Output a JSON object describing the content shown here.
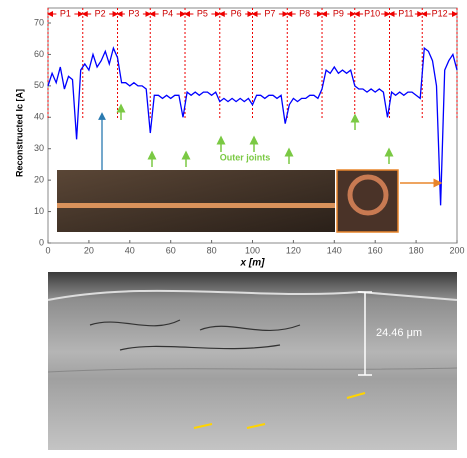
{
  "chart_data": {
    "type": "line",
    "y_label": "Reconstructed Ic [A]",
    "x_label": "x [m]",
    "annotation": "Outer joints",
    "segment_labels": [
      "P1",
      "P2",
      "P3",
      "P4",
      "P5",
      "P6",
      "P7",
      "P8",
      "P9",
      "P10",
      "P11",
      "P12"
    ],
    "segment_edges": [
      0,
      17,
      34,
      50,
      67,
      84,
      100,
      117,
      134,
      150,
      167,
      183,
      200
    ],
    "x": [
      0,
      2,
      4,
      6,
      8,
      10,
      12,
      14,
      16,
      18,
      20,
      22,
      24,
      26,
      28,
      30,
      32,
      34,
      36,
      38,
      40,
      42,
      44,
      46,
      48,
      50,
      52,
      54,
      56,
      58,
      60,
      62,
      64,
      66,
      68,
      70,
      72,
      74,
      76,
      78,
      80,
      82,
      84,
      86,
      88,
      90,
      92,
      94,
      96,
      98,
      100,
      102,
      104,
      106,
      108,
      110,
      112,
      114,
      116,
      118,
      120,
      122,
      124,
      126,
      128,
      130,
      132,
      134,
      136,
      138,
      140,
      142,
      144,
      146,
      148,
      150,
      152,
      154,
      156,
      158,
      160,
      162,
      164,
      166,
      168,
      170,
      172,
      174,
      176,
      178,
      180,
      182,
      184,
      186,
      188,
      190,
      192,
      194,
      196,
      198,
      200
    ],
    "series": [
      {
        "color": "#0000ff",
        "values": [
          50,
          54,
          51,
          56,
          49,
          53,
          52,
          33,
          55,
          57,
          55,
          60,
          56,
          58,
          61,
          57,
          62,
          59,
          51,
          51,
          50,
          51,
          50,
          50,
          49,
          35,
          47,
          47,
          46,
          47,
          46,
          47,
          47,
          40,
          48,
          47,
          48,
          47,
          48,
          48,
          47,
          48,
          45,
          46,
          45,
          46,
          45,
          46,
          45,
          46,
          44,
          47,
          47,
          46,
          47,
          47,
          46,
          47,
          38,
          44,
          46,
          45,
          46,
          46,
          47,
          47,
          46,
          49,
          55,
          54,
          56,
          54,
          55,
          54,
          55,
          50,
          49,
          49,
          48,
          49,
          48,
          49,
          48,
          40,
          48,
          47,
          48,
          47,
          48,
          48,
          47,
          46,
          62,
          61,
          58,
          50,
          12,
          55,
          58,
          60,
          55
        ]
      }
    ],
    "xlim": [
      0,
      200
    ],
    "ylim": [
      0,
      70
    ],
    "xticks": [
      0,
      20,
      40,
      60,
      80,
      100,
      120,
      140,
      160,
      180,
      200
    ],
    "yticks": [
      0,
      10,
      20,
      30,
      40,
      50,
      60,
      70
    ]
  },
  "sem_image": {
    "scale_label": "24.46 μm"
  }
}
